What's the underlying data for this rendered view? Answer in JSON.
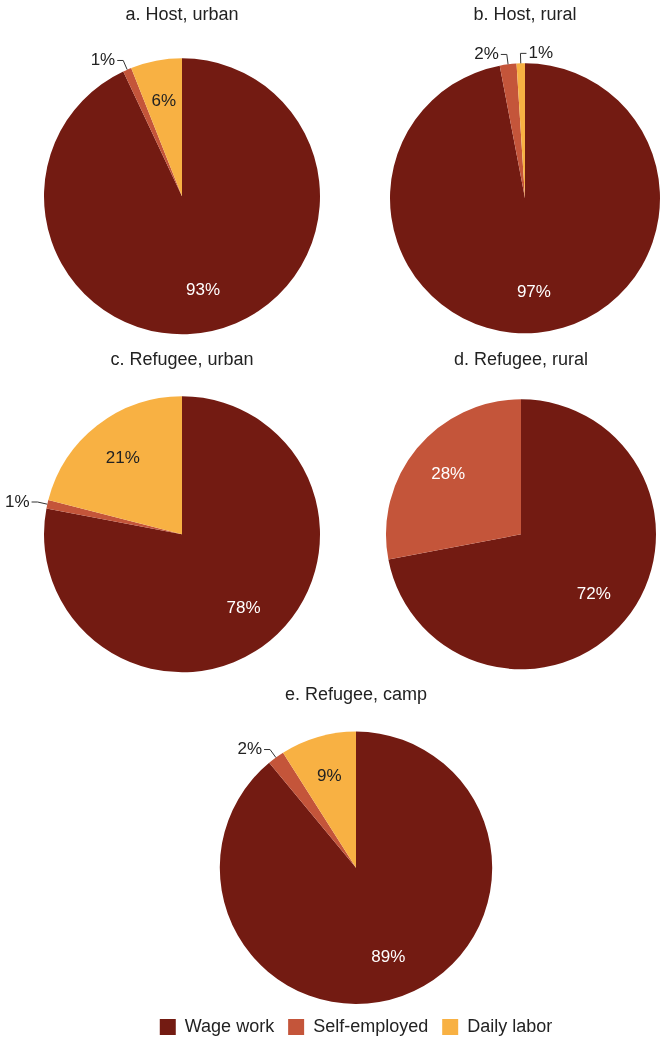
{
  "chart_data": [
    {
      "type": "pie",
      "title": "a. Host, urban",
      "values": [
        93,
        1,
        6
      ],
      "colors": [
        "#731b12",
        "#c4553a",
        "#f8b143"
      ],
      "value_labels": [
        "93%",
        "1%",
        "6%"
      ]
    },
    {
      "type": "pie",
      "title": "b. Host, rural",
      "values": [
        97,
        2,
        1
      ],
      "colors": [
        "#731b12",
        "#c4553a",
        "#f8b143"
      ],
      "value_labels": [
        "97%",
        "2%",
        "1%"
      ]
    },
    {
      "type": "pie",
      "title": "c. Refugee, urban",
      "values": [
        78,
        1,
        21
      ],
      "colors": [
        "#731b12",
        "#c4553a",
        "#f8b143"
      ],
      "value_labels": [
        "78%",
        "1%",
        "21%"
      ]
    },
    {
      "type": "pie",
      "title": "d. Refugee, rural",
      "values": [
        72,
        28
      ],
      "colors": [
        "#731b12",
        "#c4553a"
      ],
      "value_labels": [
        "72%",
        "28%"
      ]
    },
    {
      "type": "pie",
      "title": "e. Refugee, camp",
      "categories": [
        "Wage work",
        "Self-employed",
        "Daily labor"
      ],
      "values": [
        89,
        2,
        9
      ],
      "colors": [
        "#731b12",
        "#c4553a",
        "#f8b143"
      ],
      "value_labels": [
        "89%",
        "2%",
        "9%"
      ],
      "legend": "bottom"
    }
  ]
}
